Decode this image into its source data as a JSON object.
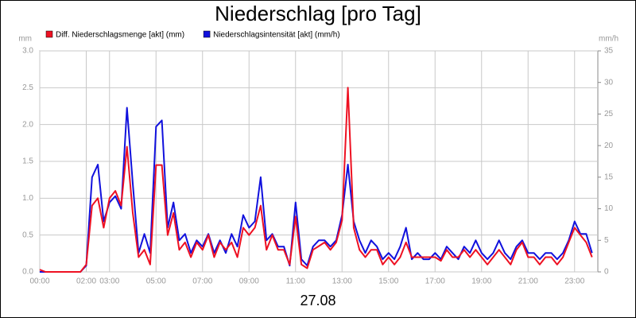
{
  "chart_data": {
    "type": "line",
    "title": "Niederschlag [pro Tag]",
    "ylabel": "mm",
    "y2label": "mm/h",
    "xlabel": "27.08",
    "x": [
      0,
      0.25,
      0.5,
      0.75,
      1,
      1.25,
      1.5,
      1.75,
      2,
      2.25,
      2.5,
      2.75,
      3,
      3.25,
      3.5,
      3.75,
      4,
      4.25,
      4.5,
      4.75,
      5,
      5.25,
      5.5,
      5.75,
      6,
      6.25,
      6.5,
      6.75,
      7,
      7.25,
      7.5,
      7.75,
      8,
      8.25,
      8.5,
      8.75,
      9,
      9.25,
      9.5,
      9.75,
      10,
      10.25,
      10.5,
      10.75,
      11,
      11.25,
      11.5,
      11.75,
      12,
      12.25,
      12.5,
      12.75,
      13,
      13.25,
      13.5,
      13.75,
      14,
      14.25,
      14.5,
      14.75,
      15,
      15.25,
      15.5,
      15.75,
      16,
      16.25,
      16.5,
      16.75,
      17,
      17.25,
      17.5,
      17.75,
      18,
      18.25,
      18.5,
      18.75,
      19,
      19.25,
      19.5,
      19.75,
      20,
      20.25,
      20.5,
      20.75,
      21,
      21.25,
      21.5,
      21.75,
      22,
      22.25,
      22.5,
      22.75,
      23,
      23.25,
      23.5,
      23.75
    ],
    "series": [
      {
        "name": "Diff. Niederschlagsmenge [akt] (mm)",
        "color": "#ee1122",
        "axis": "y",
        "values": [
          0.03,
          0,
          0,
          0,
          0,
          0,
          0,
          0,
          0.1,
          0.9,
          1.0,
          0.6,
          1.0,
          1.1,
          0.9,
          1.7,
          0.8,
          0.2,
          0.3,
          0.1,
          1.45,
          1.45,
          0.5,
          0.8,
          0.3,
          0.4,
          0.2,
          0.4,
          0.3,
          0.5,
          0.2,
          0.4,
          0.3,
          0.4,
          0.2,
          0.6,
          0.5,
          0.6,
          0.9,
          0.3,
          0.5,
          0.3,
          0.3,
          0.1,
          0.75,
          0.1,
          0.05,
          0.3,
          0.35,
          0.4,
          0.3,
          0.4,
          0.7,
          2.5,
          0.6,
          0.3,
          0.2,
          0.3,
          0.3,
          0.1,
          0.2,
          0.1,
          0.2,
          0.4,
          0.2,
          0.2,
          0.2,
          0.2,
          0.2,
          0.15,
          0.3,
          0.2,
          0.2,
          0.3,
          0.2,
          0.3,
          0.2,
          0.1,
          0.2,
          0.3,
          0.2,
          0.1,
          0.3,
          0.4,
          0.2,
          0.2,
          0.1,
          0.2,
          0.2,
          0.1,
          0.2,
          0.4,
          0.6,
          0.5,
          0.4,
          0.2
        ]
      },
      {
        "name": "Niederschlagsintensität [akt] (mm/h)",
        "color": "#1111dd",
        "axis": "y2",
        "values": [
          0,
          0,
          0,
          0,
          0,
          0,
          0,
          0,
          1,
          15,
          17,
          8,
          11,
          12,
          10,
          26,
          14,
          3,
          6,
          3,
          23,
          24,
          7,
          11,
          5,
          6,
          3,
          5,
          4,
          6,
          3,
          5,
          3,
          6,
          4,
          9,
          7,
          8,
          15,
          5,
          6,
          4,
          4,
          1,
          11,
          2,
          1,
          4,
          5,
          5,
          4,
          5,
          9,
          17,
          8,
          5,
          3,
          5,
          4,
          2,
          3,
          2,
          4,
          7,
          2,
          3,
          2,
          2,
          3,
          2,
          4,
          3,
          2,
          4,
          3,
          5,
          3,
          2,
          3,
          5,
          3,
          2,
          4,
          5,
          3,
          3,
          2,
          3,
          3,
          2,
          3,
          5,
          8,
          6,
          6,
          3
        ]
      }
    ],
    "xlim": [
      0,
      24
    ],
    "xticks": [
      {
        "value": 0,
        "label": "00:00"
      },
      {
        "value": 2,
        "label": "02:00"
      },
      {
        "value": 3,
        "label": "03:00"
      },
      {
        "value": 5,
        "label": "05:00"
      },
      {
        "value": 7,
        "label": "07:00"
      },
      {
        "value": 9,
        "label": "09:00"
      },
      {
        "value": 11,
        "label": "11:00"
      },
      {
        "value": 13,
        "label": "13:00"
      },
      {
        "value": 15,
        "label": "15:00"
      },
      {
        "value": 17,
        "label": "17:00"
      },
      {
        "value": 19,
        "label": "19:00"
      },
      {
        "value": 21,
        "label": "21:00"
      },
      {
        "value": 23,
        "label": "23:00"
      }
    ],
    "ylim": [
      0,
      3
    ],
    "yticks": [
      {
        "value": 0,
        "label": "0.0"
      },
      {
        "value": 0.5,
        "label": "0.5"
      },
      {
        "value": 1,
        "label": "1.0"
      },
      {
        "value": 1.5,
        "label": "1.5"
      },
      {
        "value": 2,
        "label": "2.0"
      },
      {
        "value": 2.5,
        "label": "2.5"
      },
      {
        "value": 3,
        "label": "3.0"
      }
    ],
    "y2lim": [
      0,
      35
    ],
    "y2ticks": [
      0,
      5,
      10,
      15,
      20,
      25,
      30,
      35
    ],
    "grid": true,
    "legend": "top-left"
  }
}
